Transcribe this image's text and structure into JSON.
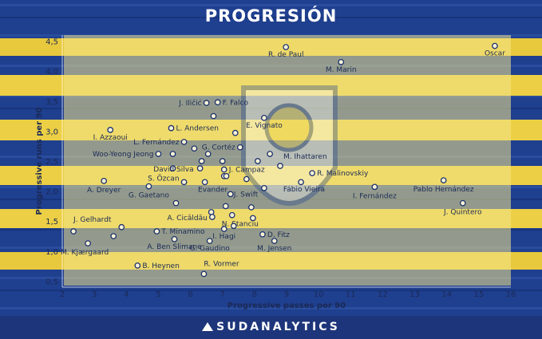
{
  "page": {
    "title": "PROGRESIÓN",
    "brand": "SUDANALYTICS"
  },
  "colors": {
    "navy": "#1f3f8f",
    "yellow": "#f2d64a",
    "marker": "#1a2f6e",
    "panel": "#f3e58c"
  },
  "chart_data": {
    "type": "scatter",
    "title": "PROGRESIÓN",
    "xlabel": "Progressive passes per 90",
    "ylabel": "Progressive runs per 90",
    "xlim": [
      2,
      16
    ],
    "ylim": [
      0.4,
      4.6
    ],
    "xticks": [
      "2",
      "3",
      "4",
      "5",
      "6",
      "7",
      "8",
      "9",
      "10",
      "11",
      "12",
      "13",
      "14",
      "15",
      "16"
    ],
    "yticks": [
      "0,5",
      "1,0",
      "1,5",
      "2,0",
      "2,5",
      "3,0",
      "3,5",
      "4,0",
      "4,5"
    ],
    "points": [
      {
        "x": 8.98,
        "y": 4.4,
        "label": "R. de Paul",
        "lx": 0,
        "ly": 12,
        "anchor": "middle"
      },
      {
        "x": 10.7,
        "y": 4.15,
        "label": "M. Marin",
        "lx": 0,
        "ly": 12,
        "anchor": "middle"
      },
      {
        "x": 15.5,
        "y": 4.42,
        "label": "Oscar",
        "lx": 0,
        "ly": 12,
        "anchor": "middle"
      },
      {
        "x": 6.5,
        "y": 3.47,
        "label": "J. Iličić",
        "lx": -6,
        "ly": 3,
        "anchor": "end"
      },
      {
        "x": 6.85,
        "y": 3.48,
        "label": "F. Falco",
        "lx": 6,
        "ly": 3,
        "anchor": "start"
      },
      {
        "x": 6.72,
        "y": 3.25,
        "label": "",
        "lx": 0,
        "ly": 0,
        "anchor": "start"
      },
      {
        "x": 8.3,
        "y": 3.22,
        "label": "E. Vignato",
        "lx": 0,
        "ly": 12,
        "anchor": "middle"
      },
      {
        "x": 3.5,
        "y": 3.02,
        "label": "I. Azzaoui",
        "lx": 0,
        "ly": 12,
        "anchor": "middle"
      },
      {
        "x": 5.4,
        "y": 3.05,
        "label": "L. Andersen",
        "lx": 6,
        "ly": 3,
        "anchor": "start"
      },
      {
        "x": 7.4,
        "y": 2.97,
        "label": "",
        "lx": 0,
        "ly": 0,
        "anchor": "start"
      },
      {
        "x": 5.8,
        "y": 2.82,
        "label": "L. Fernández",
        "lx": -6,
        "ly": 3,
        "anchor": "end"
      },
      {
        "x": 6.12,
        "y": 2.71,
        "label": "",
        "lx": 0,
        "ly": 0,
        "anchor": "start"
      },
      {
        "x": 7.55,
        "y": 2.73,
        "label": "G. Cortéz",
        "lx": -6,
        "ly": 3,
        "anchor": "end"
      },
      {
        "x": 5.0,
        "y": 2.62,
        "label": "Woo-Yeong Jeong",
        "lx": -6,
        "ly": 3,
        "anchor": "end"
      },
      {
        "x": 5.45,
        "y": 2.62,
        "label": "",
        "lx": 0,
        "ly": 0,
        "anchor": "start"
      },
      {
        "x": 6.55,
        "y": 2.62,
        "label": "",
        "lx": 0,
        "ly": 0,
        "anchor": "start"
      },
      {
        "x": 8.48,
        "y": 2.62,
        "label": "",
        "lx": 0,
        "ly": 0,
        "anchor": "start"
      },
      {
        "x": 8.8,
        "y": 2.42,
        "label": "M. Ihattaren",
        "lx": 4,
        "ly": -9,
        "anchor": "start"
      },
      {
        "x": 7.0,
        "y": 2.5,
        "label": "",
        "lx": 0,
        "ly": 0,
        "anchor": "start"
      },
      {
        "x": 8.1,
        "y": 2.5,
        "label": "",
        "lx": 0,
        "ly": 0,
        "anchor": "start"
      },
      {
        "x": 6.35,
        "y": 2.5,
        "label": "",
        "lx": 0,
        "ly": 0,
        "anchor": "start"
      },
      {
        "x": 5.45,
        "y": 2.38,
        "label": "",
        "lx": 0,
        "ly": 0,
        "anchor": "start"
      },
      {
        "x": 7.05,
        "y": 2.36,
        "label": "J. Campaz",
        "lx": 6,
        "ly": 3,
        "anchor": "start"
      },
      {
        "x": 9.8,
        "y": 2.3,
        "label": "R. Malinovskiy",
        "lx": 6,
        "ly": 3,
        "anchor": "start"
      },
      {
        "x": 6.3,
        "y": 2.38,
        "label": "David Silva",
        "lx": -8,
        "ly": 4,
        "anchor": "end"
      },
      {
        "x": 7.05,
        "y": 2.25,
        "label": "",
        "lx": 0,
        "ly": 0,
        "anchor": "start"
      },
      {
        "x": 7.12,
        "y": 2.25,
        "label": "",
        "lx": 0,
        "ly": 0,
        "anchor": "start"
      },
      {
        "x": 7.75,
        "y": 2.2,
        "label": "",
        "lx": 0,
        "ly": 0,
        "anchor": "start"
      },
      {
        "x": 5.8,
        "y": 2.15,
        "label": "S. Özcan",
        "lx": -6,
        "ly": -2,
        "anchor": "end"
      },
      {
        "x": 3.3,
        "y": 2.17,
        "label": "A. Dreyer",
        "lx": 0,
        "ly": 14,
        "anchor": "middle"
      },
      {
        "x": 9.45,
        "y": 2.15,
        "label": "",
        "lx": 0,
        "ly": 0,
        "anchor": "start"
      },
      {
        "x": 4.7,
        "y": 2.08,
        "label": "G. Gaetano",
        "lx": 0,
        "ly": 14,
        "anchor": "middle"
      },
      {
        "x": 6.45,
        "y": 2.15,
        "label": "Evander",
        "lx": 10,
        "ly": 12,
        "anchor": "middle"
      },
      {
        "x": 8.3,
        "y": 2.05,
        "label": "Fábio Vieira",
        "lx": 24,
        "ly": 4,
        "anchor": "start"
      },
      {
        "x": 11.75,
        "y": 2.07,
        "label": "I. Fernández",
        "lx": 0,
        "ly": 14,
        "anchor": "middle"
      },
      {
        "x": 13.9,
        "y": 2.18,
        "label": "Pablo Hernández",
        "lx": 0,
        "ly": 14,
        "anchor": "middle"
      },
      {
        "x": 14.5,
        "y": 1.8,
        "label": "J. Quintero",
        "lx": 0,
        "ly": 14,
        "anchor": "middle"
      },
      {
        "x": 7.25,
        "y": 1.95,
        "label": "J. Swift",
        "lx": 4,
        "ly": 3,
        "anchor": "start"
      },
      {
        "x": 5.55,
        "y": 1.8,
        "label": "",
        "lx": 0,
        "ly": 0,
        "anchor": "start"
      },
      {
        "x": 7.1,
        "y": 1.75,
        "label": "",
        "lx": 0,
        "ly": 0,
        "anchor": "start"
      },
      {
        "x": 7.9,
        "y": 1.73,
        "label": "",
        "lx": 0,
        "ly": 0,
        "anchor": "start"
      },
      {
        "x": 6.65,
        "y": 1.65,
        "label": "",
        "lx": 0,
        "ly": 0,
        "anchor": "start"
      },
      {
        "x": 6.68,
        "y": 1.57,
        "label": "A. Cicâldău",
        "lx": -6,
        "ly": 4,
        "anchor": "end"
      },
      {
        "x": 7.95,
        "y": 1.55,
        "label": "",
        "lx": 0,
        "ly": 0,
        "anchor": "start"
      },
      {
        "x": 7.3,
        "y": 1.6,
        "label": "N. Stanciu",
        "lx": 10,
        "ly": 14,
        "anchor": "middle"
      },
      {
        "x": 3.85,
        "y": 1.4,
        "label": "",
        "lx": 0,
        "ly": 0,
        "anchor": "start"
      },
      {
        "x": 2.35,
        "y": 1.33,
        "label": "J. Gelhardt",
        "lx": 0,
        "ly": -12,
        "anchor": "start"
      },
      {
        "x": 7.35,
        "y": 1.42,
        "label": "",
        "lx": 0,
        "ly": 0,
        "anchor": "start"
      },
      {
        "x": 4.95,
        "y": 1.33,
        "label": "T. Minamino",
        "lx": 6,
        "ly": 3,
        "anchor": "start"
      },
      {
        "x": 7.05,
        "y": 1.37,
        "label": "I. Hagi",
        "lx": 0,
        "ly": 12,
        "anchor": "middle"
      },
      {
        "x": 3.6,
        "y": 1.25,
        "label": "",
        "lx": 0,
        "ly": 0,
        "anchor": "start"
      },
      {
        "x": 8.25,
        "y": 1.28,
        "label": "D. Fitz",
        "lx": 6,
        "ly": 3,
        "anchor": "start"
      },
      {
        "x": 2.8,
        "y": 1.13,
        "label": "M. Kjærgaard",
        "lx": -4,
        "ly": 14,
        "anchor": "middle"
      },
      {
        "x": 5.5,
        "y": 1.2,
        "label": "A. Ben Slimane",
        "lx": 0,
        "ly": 12,
        "anchor": "middle"
      },
      {
        "x": 6.6,
        "y": 1.17,
        "label": "G. Gaudino",
        "lx": 0,
        "ly": 12,
        "anchor": "middle"
      },
      {
        "x": 8.62,
        "y": 1.17,
        "label": "M. Jensen",
        "lx": 0,
        "ly": 12,
        "anchor": "middle"
      },
      {
        "x": 4.35,
        "y": 0.76,
        "label": "B. Heynen",
        "lx": 6,
        "ly": 3,
        "anchor": "start"
      },
      {
        "x": 6.42,
        "y": 0.62,
        "label": "R. Vormer",
        "lx": 0,
        "ly": -10,
        "anchor": "start"
      }
    ]
  }
}
